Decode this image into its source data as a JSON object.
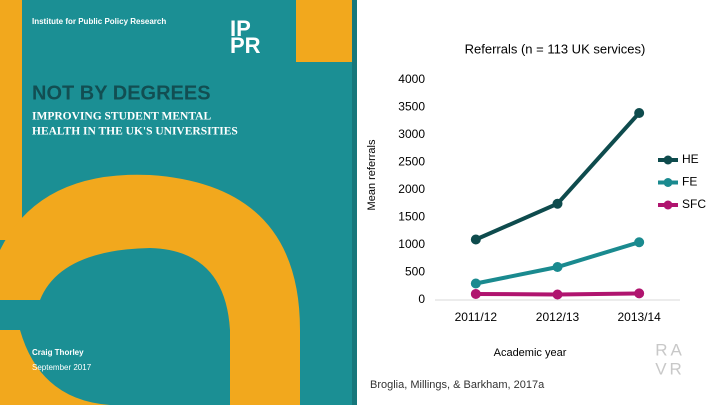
{
  "cover": {
    "publisher": "Institute for Public Policy Research",
    "logo_lines": [
      "IP",
      "PR"
    ],
    "title": "NOT BY DEGREES",
    "subtitle_lines": [
      "IMPROVING STUDENT MENTAL",
      "HEALTH IN THE UK'S UNIVERSITIES"
    ],
    "author": "Craig Thorley",
    "date": "September 2017"
  },
  "badge": {
    "top": "RA",
    "bottom": "VR"
  },
  "chart_data": {
    "type": "line",
    "title": "Referrals (n = 113 UK services)",
    "y_label": "Mean referrals",
    "x_label": "Academic year",
    "source": "Broglia, Millings, & Barkham, 2017a",
    "categories": [
      "2011/12",
      "2012/13",
      "2013/14"
    ],
    "series": [
      {
        "name": "HE",
        "color": "#0e4b4d",
        "values": [
          1100,
          1750,
          3400
        ]
      },
      {
        "name": "FE",
        "color": "#1a8a8f",
        "values": [
          300,
          600,
          1050
        ]
      },
      {
        "name": "SFC",
        "color": "#b0146f",
        "values": [
          110,
          100,
          120
        ]
      }
    ],
    "ylim": [
      0,
      4000
    ],
    "yticks": [
      0,
      500,
      1000,
      1500,
      2000,
      2500,
      3000,
      3500,
      4000
    ],
    "grid": false,
    "legend": "right"
  }
}
